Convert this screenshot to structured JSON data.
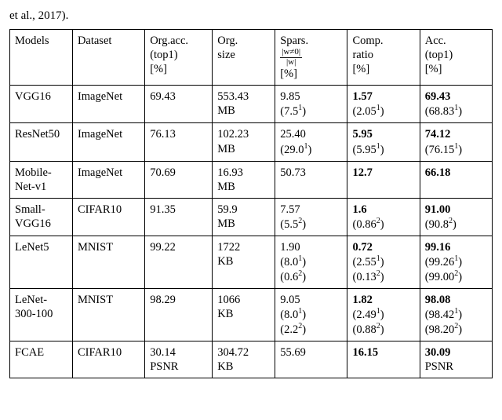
{
  "pre_text": "et al., 2017).",
  "headers": {
    "models": "Models",
    "dataset": "Dataset",
    "org_acc_l1": "Org.acc.",
    "org_acc_l2": "(top1)",
    "org_acc_l3": "[%]",
    "org_size_l1": "Org.",
    "org_size_l2": "size",
    "spars_l1": "Spars.",
    "spars_num": "|w≠0|",
    "spars_den": "|w|",
    "spars_l3": "[%]",
    "comp_l1": "Comp.",
    "comp_l2": "ratio",
    "comp_l3": "[%]",
    "acc_l1": "Acc.",
    "acc_l2": "(top1)",
    "acc_l3": "[%]"
  },
  "rows": [
    {
      "model": "VGG16",
      "dataset": "ImageNet",
      "org_acc": "69.43",
      "org_size_l1": "553.43",
      "org_size_l2": "MB",
      "spars_main": "9.85",
      "spars_sub_val": "7.5",
      "spars_sub_sup": "1",
      "comp_main": "1.57",
      "comp_sub_val": "2.05",
      "comp_sub_sup": "1",
      "acc_main": "69.43",
      "acc_sub_val": "68.83",
      "acc_sub_sup": "1"
    },
    {
      "model": "ResNet50",
      "dataset": "ImageNet",
      "org_acc": "76.13",
      "org_size_l1": "102.23",
      "org_size_l2": "MB",
      "spars_main": "25.40",
      "spars_sub_val": "29.0",
      "spars_sub_sup": "1",
      "comp_main": "5.95",
      "comp_sub_val": "5.95",
      "comp_sub_sup": "1",
      "acc_main": "74.12",
      "acc_sub_val": "76.15",
      "acc_sub_sup": "1"
    },
    {
      "model_l1": "Mobile-",
      "model_l2": "Net-v1",
      "dataset": "ImageNet",
      "org_acc": "70.69",
      "org_size_l1": "16.93",
      "org_size_l2": "MB",
      "spars_main": "50.73",
      "comp_main": "12.7",
      "acc_main": "66.18"
    },
    {
      "model_l1": "Small-",
      "model_l2": "VGG16",
      "dataset": "CIFAR10",
      "org_acc": "91.35",
      "org_size_l1": "59.9",
      "org_size_l2": "MB",
      "spars_main": "7.57",
      "spars_sub_val": "5.5",
      "spars_sub_sup": "2",
      "comp_main": "1.6",
      "comp_sub_val": "0.86",
      "comp_sub_sup": "2",
      "acc_main": "91.00",
      "acc_sub_val": "90.8",
      "acc_sub_sup": "2"
    },
    {
      "model": "LeNet5",
      "dataset": "MNIST",
      "org_acc": "99.22",
      "org_size_l1": "1722",
      "org_size_l2": "KB",
      "spars_main": "1.90",
      "spars_sub_val": "8.0",
      "spars_sub_sup": "1",
      "spars_sub2_val": "0.6",
      "spars_sub2_sup": "2",
      "comp_main": "0.72",
      "comp_sub_val": "2.55",
      "comp_sub_sup": "1",
      "comp_sub2_val": "0.13",
      "comp_sub2_sup": "2",
      "acc_main": "99.16",
      "acc_sub_val": "99.26",
      "acc_sub_sup": "1",
      "acc_sub2_val": "99.00",
      "acc_sub2_sup": "2"
    },
    {
      "model_l1": "LeNet-",
      "model_l2": "300-100",
      "dataset": "MNIST",
      "org_acc": "98.29",
      "org_size_l1": "1066",
      "org_size_l2": "KB",
      "spars_main": "9.05",
      "spars_sub_val": "8.0",
      "spars_sub_sup": "1",
      "spars_sub2_val": "2.2",
      "spars_sub2_sup": "2",
      "comp_main": "1.82",
      "comp_sub_val": "2.49",
      "comp_sub_sup": "1",
      "comp_sub2_val": "0.88",
      "comp_sub2_sup": "2",
      "acc_main": "98.08",
      "acc_sub_val": "98.42",
      "acc_sub_sup": "1",
      "acc_sub2_val": "98.20",
      "acc_sub2_sup": "2"
    },
    {
      "model": "FCAE",
      "dataset": "CIFAR10",
      "org_acc_l1": "30.14",
      "org_acc_l2": "PSNR",
      "org_size_l1": "304.72",
      "org_size_l2": "KB",
      "spars_main": "55.69",
      "comp_main": "16.15",
      "acc_main_l1": "30.09",
      "acc_main_l2": "PSNR"
    }
  ]
}
